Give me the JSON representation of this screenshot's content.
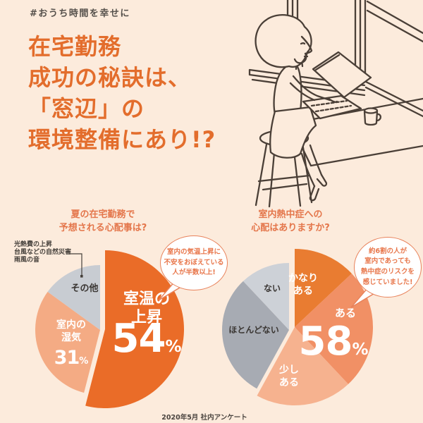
{
  "page": {
    "hashtag": "#おうち時間を幸せに",
    "title_lines": [
      "在宅勤務",
      "成功の秘訣は、",
      "「窓辺」の",
      "環境整備にあり!?"
    ],
    "footer": "2020年5月 社内アンケート",
    "colors": {
      "background": "#fcebdc",
      "accent_orange": "#e36d2c",
      "header_orange": "#e4764b",
      "callout_orange": "#e8764a",
      "text_dark": "#3f3a36"
    },
    "illustration": "line drawing of a woman on a stool working on a laptop at a window-side counter with a mug"
  },
  "chart_data": [
    {
      "type": "pie",
      "title": "夏の在宅勤務で予想される心配事は?",
      "title_lines": [
        "夏の在宅勤務で",
        "予想される心配事は?"
      ],
      "legend_position": "none",
      "slices": [
        {
          "label": "室温の上昇",
          "label_lines": [
            "室温の",
            "上昇"
          ],
          "value": 54,
          "unit": "%",
          "color": "#ea6c28",
          "emphasized": true
        },
        {
          "label": "室内の湿気",
          "label_lines": [
            "室内の",
            "湿気"
          ],
          "value": 31,
          "unit": "%",
          "color": "#f4ab84",
          "emphasized": false
        },
        {
          "label": "その他",
          "value": 15,
          "color": "#c8ccd2",
          "emphasized": false
        }
      ],
      "minor_labels": [
        "光熱費の上昇",
        "台風などの自然災害",
        "雨風の音"
      ],
      "callout_lines": [
        "室内の気温上昇に",
        "不安をおぼえている",
        "人が半数以上!"
      ]
    },
    {
      "type": "pie",
      "title": "室内熱中症への心配はありますか?",
      "title_lines": [
        "室内熱中症への",
        "心配はありますか?"
      ],
      "legend_position": "none",
      "big_value": 58,
      "big_value_unit": "%",
      "slices": [
        {
          "label": "かなりある",
          "label_lines": [
            "かなり",
            "ある"
          ],
          "value": 13,
          "color": "#e97c31",
          "emphasized": true
        },
        {
          "label": "ある",
          "value": 25,
          "color": "#f19065",
          "emphasized": true
        },
        {
          "label": "少しある",
          "label_lines": [
            "少し",
            "ある"
          ],
          "value": 20,
          "color": "#f6b28f",
          "emphasized": true
        },
        {
          "label": "ほとんどない",
          "value": 30,
          "color": "#a7abb3",
          "emphasized": false
        },
        {
          "label": "ない",
          "value": 12,
          "color": "#cdd1d7",
          "emphasized": false
        }
      ],
      "callout_lines": [
        "約6割の人が",
        "室内であっても",
        "熱中症のリスクを",
        "感じていました!"
      ]
    }
  ]
}
